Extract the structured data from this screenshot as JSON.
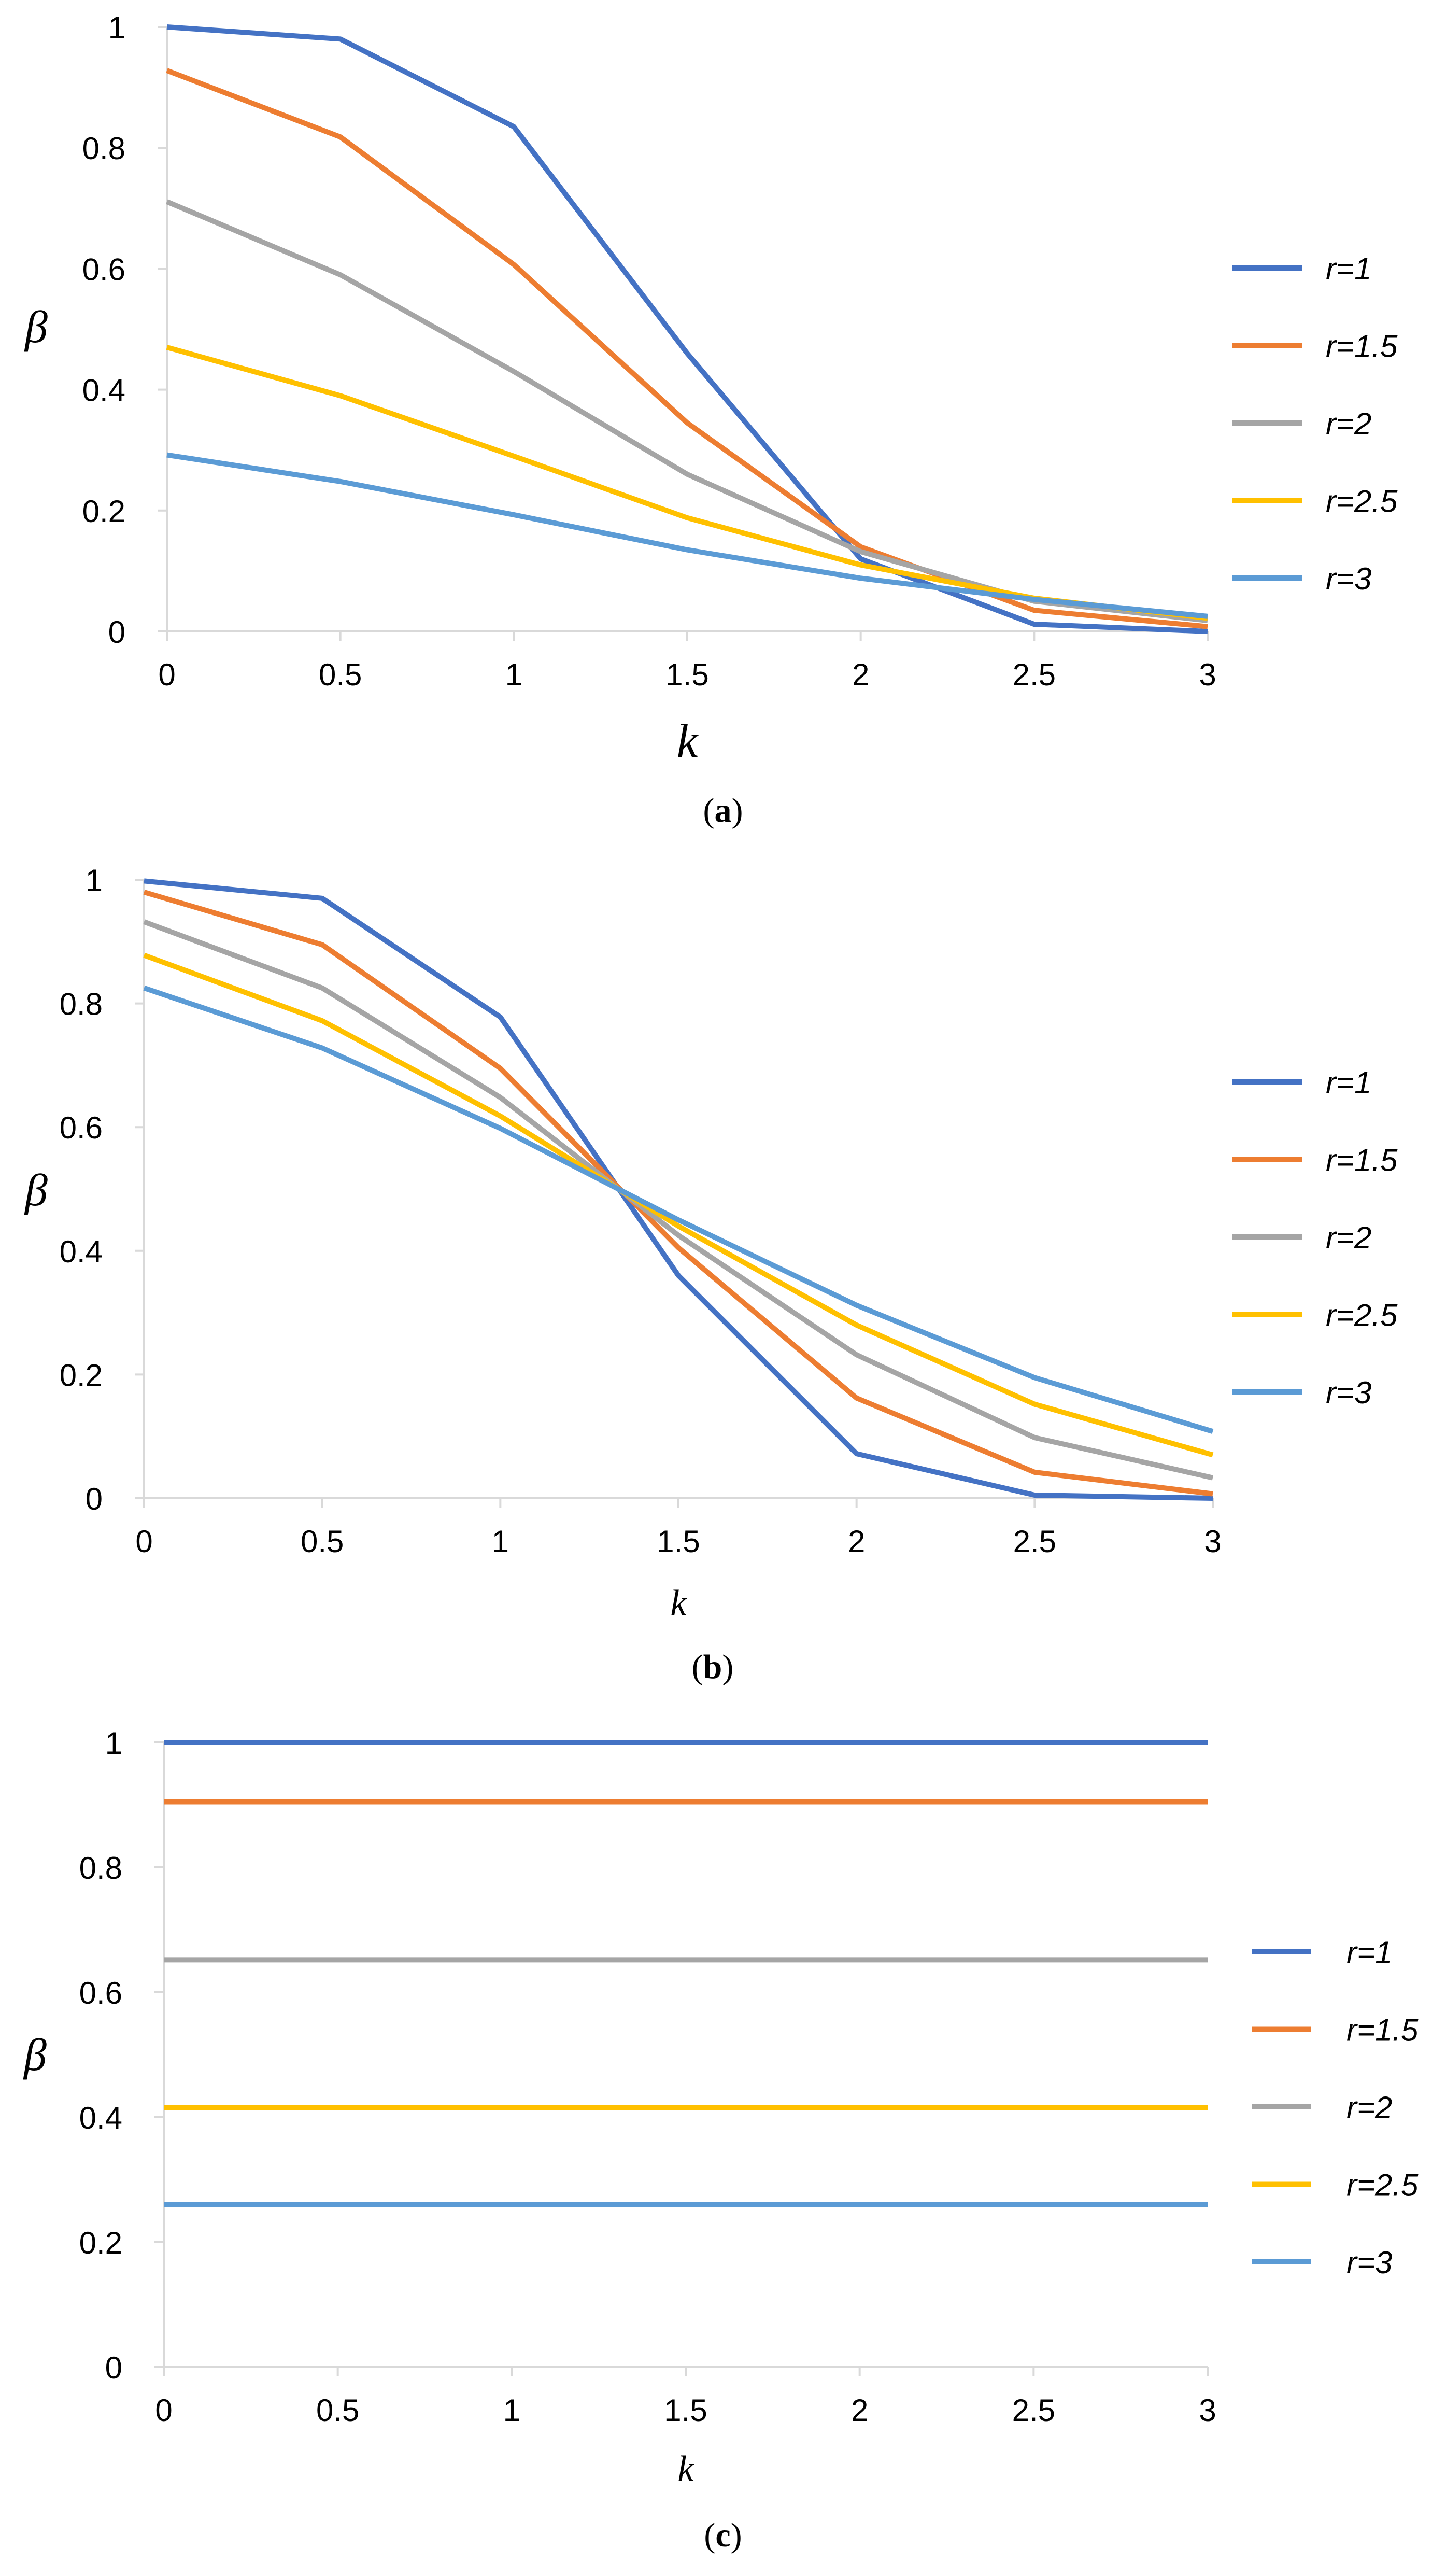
{
  "chart_data": [
    {
      "type": "line",
      "caption": "a",
      "xlabel": "k",
      "ylabel": "β",
      "x": [
        0,
        0.5,
        1,
        1.5,
        2,
        2.5,
        3
      ],
      "xlim": [
        0,
        3
      ],
      "ylim": [
        0,
        1
      ],
      "xticks": [
        "0",
        "0.5",
        "1",
        "1.5",
        "2",
        "2.5",
        "3"
      ],
      "yticks": [
        "0",
        "0.2",
        "0.4",
        "0.6",
        "0.8",
        "1"
      ],
      "legend_position": "right",
      "series": [
        {
          "name": "r=1",
          "color": "#4472C4",
          "values": [
            1.0,
            0.98,
            0.835,
            0.46,
            0.12,
            0.012,
            0.0
          ]
        },
        {
          "name": "r=1.5",
          "color": "#ED7D31",
          "values": [
            0.928,
            0.818,
            0.607,
            0.345,
            0.14,
            0.035,
            0.008
          ]
        },
        {
          "name": "r=2",
          "color": "#A5A5A5",
          "values": [
            0.711,
            0.59,
            0.43,
            0.26,
            0.132,
            0.05,
            0.018
          ]
        },
        {
          "name": "r=2.5",
          "color": "#FFC000",
          "values": [
            0.47,
            0.39,
            0.29,
            0.188,
            0.11,
            0.055,
            0.022
          ]
        },
        {
          "name": "r=3",
          "color": "#5B9BD5",
          "values": [
            0.292,
            0.248,
            0.193,
            0.135,
            0.088,
            0.053,
            0.025
          ]
        }
      ]
    },
    {
      "type": "line",
      "caption": "b",
      "xlabel": "k",
      "ylabel": "β",
      "x": [
        0,
        0.5,
        1,
        1.5,
        2,
        2.5,
        3
      ],
      "xlim": [
        0,
        3
      ],
      "ylim": [
        0,
        1
      ],
      "xticks": [
        "0",
        "0.5",
        "1",
        "1.5",
        "2",
        "2.5",
        "3"
      ],
      "yticks": [
        "0",
        "0.2",
        "0.4",
        "0.6",
        "0.8",
        "1"
      ],
      "legend_position": "right",
      "series": [
        {
          "name": "r=1",
          "color": "#4472C4",
          "values": [
            0.998,
            0.97,
            0.778,
            0.36,
            0.072,
            0.005,
            0.0
          ]
        },
        {
          "name": "r=1.5",
          "color": "#ED7D31",
          "values": [
            0.98,
            0.895,
            0.695,
            0.405,
            0.162,
            0.042,
            0.007
          ]
        },
        {
          "name": "r=2",
          "color": "#A5A5A5",
          "values": [
            0.932,
            0.825,
            0.648,
            0.425,
            0.232,
            0.098,
            0.033
          ]
        },
        {
          "name": "r=2.5",
          "color": "#FFC000",
          "values": [
            0.878,
            0.772,
            0.618,
            0.44,
            0.28,
            0.152,
            0.07
          ]
        },
        {
          "name": "r=3",
          "color": "#5B9BD5",
          "values": [
            0.825,
            0.728,
            0.598,
            0.45,
            0.312,
            0.195,
            0.108
          ]
        }
      ]
    },
    {
      "type": "line",
      "caption": "c",
      "xlabel": "k",
      "ylabel": "β",
      "x": [
        0,
        0.5,
        1,
        1.5,
        2,
        2.5,
        3
      ],
      "xlim": [
        0,
        3
      ],
      "ylim": [
        0,
        1
      ],
      "xticks": [
        "0",
        "0.5",
        "1",
        "1.5",
        "2",
        "2.5",
        "3"
      ],
      "yticks": [
        "0",
        "0.2",
        "0.4",
        "0.6",
        "0.8",
        "1"
      ],
      "legend_position": "right",
      "series": [
        {
          "name": "r=1",
          "color": "#4472C4",
          "values": [
            1.0,
            1.0,
            1.0,
            1.0,
            1.0,
            1.0,
            1.0
          ]
        },
        {
          "name": "r=1.5",
          "color": "#ED7D31",
          "values": [
            0.905,
            0.905,
            0.905,
            0.905,
            0.905,
            0.905,
            0.905
          ]
        },
        {
          "name": "r=2",
          "color": "#A5A5A5",
          "values": [
            0.652,
            0.652,
            0.652,
            0.652,
            0.652,
            0.652,
            0.652
          ]
        },
        {
          "name": "r=2.5",
          "color": "#FFC000",
          "values": [
            0.415,
            0.415,
            0.415,
            0.415,
            0.415,
            0.415,
            0.415
          ]
        },
        {
          "name": "r=3",
          "color": "#5B9BD5",
          "values": [
            0.26,
            0.26,
            0.26,
            0.26,
            0.26,
            0.26,
            0.26
          ]
        }
      ]
    }
  ]
}
